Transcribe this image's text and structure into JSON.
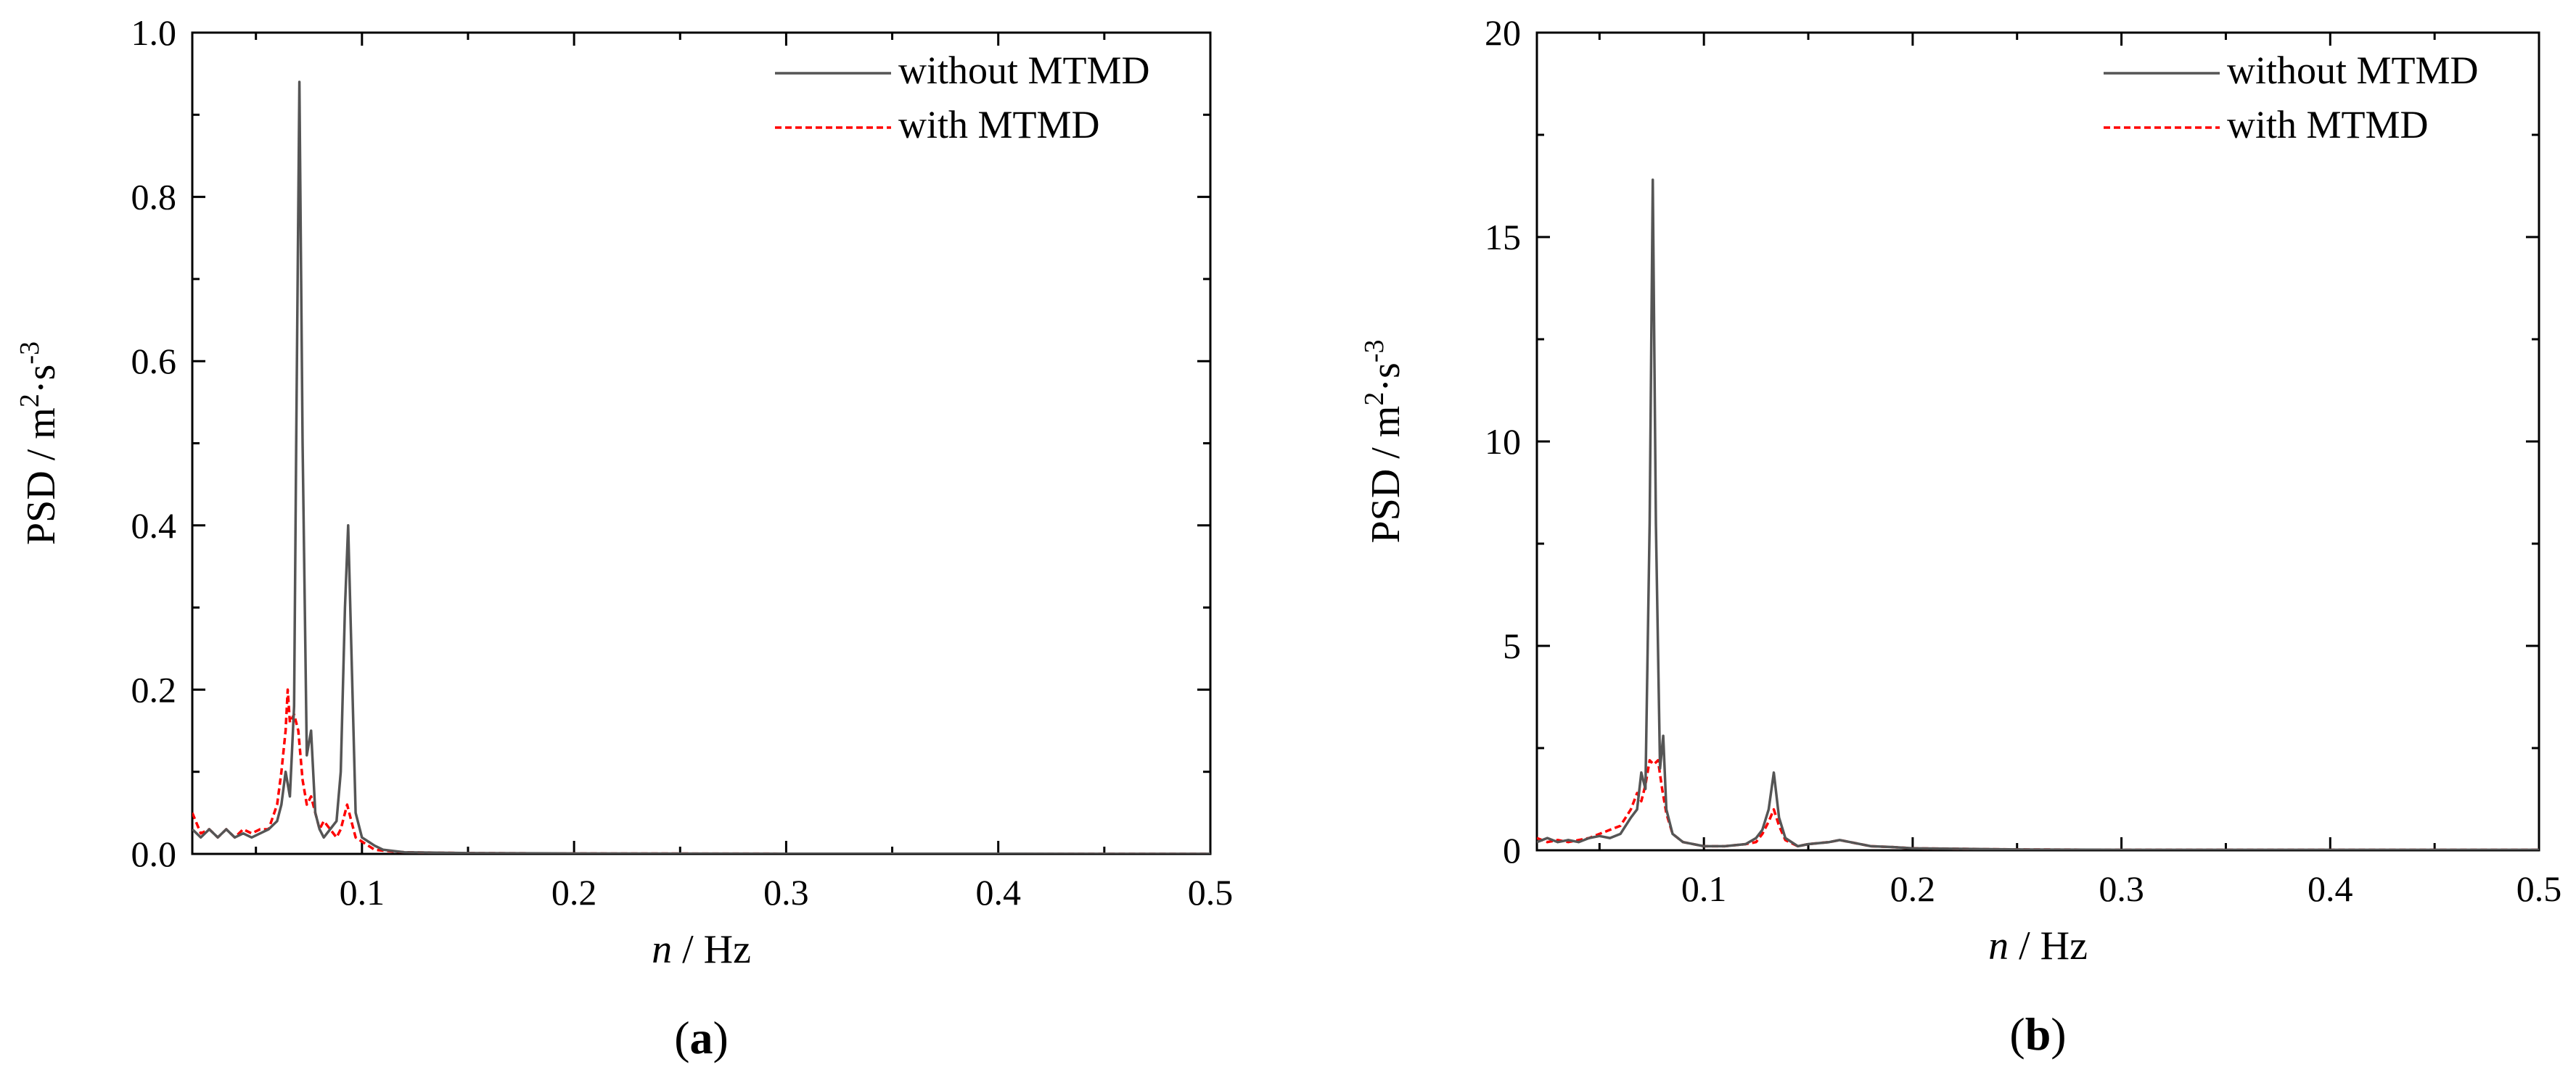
{
  "chart_data": [
    {
      "type": "line",
      "panel_label": "a",
      "xlabel_italic": "n",
      "xlabel_unit": " / Hz",
      "ylabel_main": "PSD / m",
      "ylabel_sup1": "2",
      "ylabel_mid": "·s",
      "ylabel_sup2": "-3",
      "xlim": [
        0.02,
        0.5
      ],
      "ylim": [
        0,
        1.0
      ],
      "xticks": [
        0.1,
        0.2,
        0.3,
        0.4,
        0.5
      ],
      "xtick_labels": [
        "0.1",
        "0.2",
        "0.3",
        "0.4",
        "0.5"
      ],
      "yticks": [
        0,
        0.2,
        0.4,
        0.6,
        0.8,
        1.0
      ],
      "ytick_labels": [
        "0.0",
        "0.2",
        "0.4",
        "0.6",
        "0.8",
        "1.0"
      ],
      "legend_position": "top-right",
      "series": [
        {
          "name": "without MTMD",
          "color": "#555555",
          "style": "solid",
          "x": [
            0.02,
            0.024,
            0.028,
            0.032,
            0.036,
            0.04,
            0.044,
            0.048,
            0.052,
            0.056,
            0.06,
            0.062,
            0.064,
            0.066,
            0.068,
            0.069,
            0.0705,
            0.072,
            0.074,
            0.076,
            0.078,
            0.08,
            0.082,
            0.085,
            0.088,
            0.09,
            0.092,
            0.0935,
            0.095,
            0.097,
            0.1,
            0.103,
            0.106,
            0.11,
            0.12,
            0.15,
            0.2,
            0.3,
            0.4,
            0.5
          ],
          "values": [
            0.03,
            0.02,
            0.03,
            0.02,
            0.03,
            0.02,
            0.025,
            0.02,
            0.025,
            0.03,
            0.04,
            0.06,
            0.1,
            0.07,
            0.18,
            0.5,
            0.94,
            0.5,
            0.12,
            0.15,
            0.05,
            0.03,
            0.02,
            0.03,
            0.04,
            0.1,
            0.3,
            0.4,
            0.25,
            0.05,
            0.02,
            0.015,
            0.01,
            0.005,
            0.002,
            0.001,
            0.0005,
            0.0003,
            0.0002,
            0.0001
          ]
        },
        {
          "name": "with MTMD",
          "color": "#ff0000",
          "style": "dashed",
          "x": [
            0.02,
            0.024,
            0.028,
            0.032,
            0.036,
            0.04,
            0.044,
            0.048,
            0.052,
            0.056,
            0.06,
            0.062,
            0.064,
            0.065,
            0.066,
            0.068,
            0.07,
            0.072,
            0.074,
            0.076,
            0.078,
            0.08,
            0.082,
            0.085,
            0.088,
            0.09,
            0.093,
            0.095,
            0.097,
            0.1,
            0.103,
            0.106,
            0.11,
            0.12,
            0.15,
            0.2,
            0.3,
            0.4,
            0.5
          ],
          "values": [
            0.05,
            0.025,
            0.03,
            0.02,
            0.03,
            0.02,
            0.03,
            0.025,
            0.03,
            0.03,
            0.06,
            0.1,
            0.15,
            0.2,
            0.16,
            0.17,
            0.15,
            0.09,
            0.06,
            0.07,
            0.05,
            0.03,
            0.04,
            0.03,
            0.02,
            0.03,
            0.06,
            0.04,
            0.02,
            0.015,
            0.01,
            0.005,
            0.004,
            0.002,
            0.001,
            0.0005,
            0.0003,
            0.0002,
            0.0001
          ]
        }
      ]
    },
    {
      "type": "line",
      "panel_label": "b",
      "xlabel_italic": "n",
      "xlabel_unit": " / Hz",
      "ylabel_main": "PSD / m",
      "ylabel_sup1": "2",
      "ylabel_mid": "·s",
      "ylabel_sup2": "-3",
      "xlim": [
        0.02,
        0.5
      ],
      "ylim": [
        0,
        20
      ],
      "xticks": [
        0.1,
        0.2,
        0.3,
        0.4,
        0.5
      ],
      "xtick_labels": [
        "0.1",
        "0.2",
        "0.3",
        "0.4",
        "0.5"
      ],
      "yticks": [
        0,
        5,
        10,
        15,
        20
      ],
      "ytick_labels": [
        "0",
        "5",
        "10",
        "15",
        "20"
      ],
      "legend_position": "top-right",
      "series": [
        {
          "name": "without MTMD",
          "color": "#555555",
          "style": "solid",
          "x": [
            0.02,
            0.025,
            0.03,
            0.035,
            0.04,
            0.045,
            0.05,
            0.055,
            0.06,
            0.065,
            0.068,
            0.07,
            0.072,
            0.074,
            0.0755,
            0.077,
            0.079,
            0.0805,
            0.082,
            0.085,
            0.09,
            0.1,
            0.11,
            0.12,
            0.125,
            0.128,
            0.131,
            0.1335,
            0.136,
            0.139,
            0.145,
            0.15,
            0.16,
            0.165,
            0.17,
            0.18,
            0.19,
            0.2,
            0.25,
            0.3,
            0.4,
            0.5
          ],
          "values": [
            0.2,
            0.3,
            0.2,
            0.25,
            0.2,
            0.3,
            0.35,
            0.3,
            0.4,
            0.8,
            1.0,
            1.9,
            1.5,
            8.0,
            16.4,
            8.0,
            2.0,
            2.8,
            1.0,
            0.4,
            0.2,
            0.1,
            0.1,
            0.15,
            0.3,
            0.5,
            1.0,
            1.9,
            0.8,
            0.3,
            0.1,
            0.15,
            0.2,
            0.25,
            0.2,
            0.1,
            0.08,
            0.05,
            0.02,
            0.01,
            0.01,
            0.01
          ]
        },
        {
          "name": "with MTMD",
          "color": "#ff0000",
          "style": "dashed",
          "x": [
            0.02,
            0.025,
            0.03,
            0.035,
            0.04,
            0.045,
            0.05,
            0.055,
            0.06,
            0.065,
            0.068,
            0.07,
            0.072,
            0.074,
            0.076,
            0.078,
            0.08,
            0.082,
            0.085,
            0.09,
            0.1,
            0.11,
            0.12,
            0.125,
            0.128,
            0.131,
            0.1335,
            0.136,
            0.139,
            0.145,
            0.15,
            0.16,
            0.165,
            0.17,
            0.18,
            0.19,
            0.2,
            0.25,
            0.3,
            0.4,
            0.5
          ],
          "values": [
            0.3,
            0.2,
            0.25,
            0.2,
            0.25,
            0.3,
            0.4,
            0.5,
            0.6,
            1.0,
            1.4,
            1.2,
            1.6,
            2.2,
            2.1,
            2.2,
            1.5,
            0.9,
            0.4,
            0.2,
            0.1,
            0.1,
            0.15,
            0.2,
            0.4,
            0.7,
            1.0,
            0.6,
            0.25,
            0.1,
            0.15,
            0.2,
            0.25,
            0.2,
            0.1,
            0.08,
            0.05,
            0.02,
            0.01,
            0.01,
            0.01
          ]
        }
      ]
    }
  ]
}
